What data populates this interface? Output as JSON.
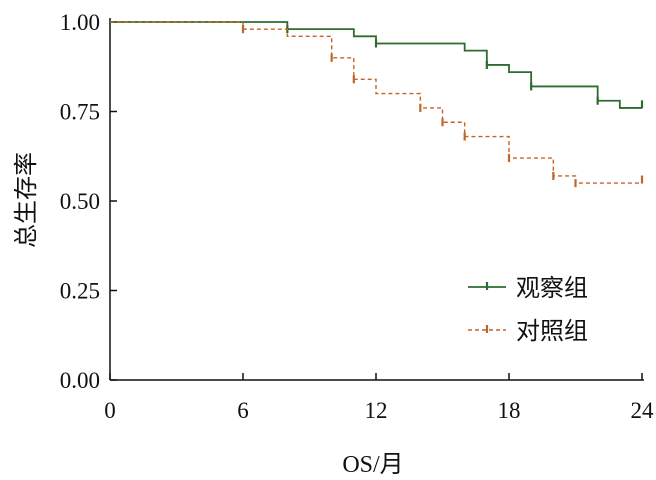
{
  "chart_data": {
    "type": "line",
    "title": "",
    "xlabel": "OS/月",
    "ylabel": "总生存率",
    "xlim": [
      0,
      24
    ],
    "ylim": [
      0,
      1
    ],
    "xticks": [
      0,
      6,
      12,
      18,
      24
    ],
    "xtick_labels": [
      "0",
      "6",
      "12",
      "18",
      "24"
    ],
    "yticks": [
      0,
      0.25,
      0.5,
      0.75,
      1
    ],
    "ytick_labels": [
      "0.00",
      "0.25",
      "0.50",
      "0.75",
      "1.00"
    ],
    "grid": false,
    "legend_position": "right",
    "series": [
      {
        "name": "观察组",
        "color": "#2e6b2e",
        "style": "solid",
        "steps": [
          [
            0,
            1.0
          ],
          [
            8,
            0.98
          ],
          [
            11,
            0.96
          ],
          [
            12,
            0.94
          ],
          [
            16,
            0.92
          ],
          [
            17,
            0.88
          ],
          [
            18,
            0.86
          ],
          [
            19,
            0.82
          ],
          [
            22,
            0.78
          ],
          [
            23,
            0.76
          ],
          [
            24,
            0.76
          ]
        ],
        "censor_marks": [
          [
            8,
            0.98
          ],
          [
            12,
            0.94
          ],
          [
            17,
            0.88
          ],
          [
            19,
            0.82
          ],
          [
            22,
            0.78
          ],
          [
            24,
            0.77
          ]
        ]
      },
      {
        "name": "对照组",
        "color": "#c0652a",
        "style": "dashed",
        "steps": [
          [
            0,
            1.0
          ],
          [
            6,
            0.98
          ],
          [
            8,
            0.96
          ],
          [
            10,
            0.9
          ],
          [
            11,
            0.84
          ],
          [
            12,
            0.8
          ],
          [
            14,
            0.76
          ],
          [
            15,
            0.72
          ],
          [
            16,
            0.68
          ],
          [
            18,
            0.62
          ],
          [
            20,
            0.57
          ],
          [
            21,
            0.55
          ],
          [
            24,
            0.55
          ]
        ],
        "censor_marks": [
          [
            6,
            0.98
          ],
          [
            10,
            0.9
          ],
          [
            11,
            0.84
          ],
          [
            14,
            0.76
          ],
          [
            15,
            0.72
          ],
          [
            16,
            0.68
          ],
          [
            18,
            0.62
          ],
          [
            20,
            0.57
          ],
          [
            21,
            0.55
          ],
          [
            24,
            0.56
          ]
        ]
      }
    ]
  }
}
